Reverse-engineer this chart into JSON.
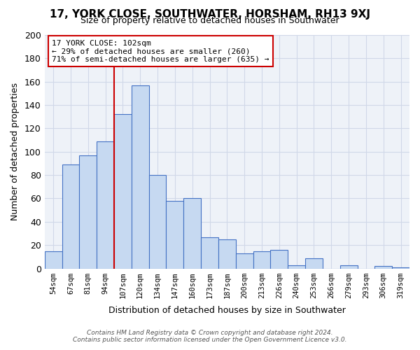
{
  "title": "17, YORK CLOSE, SOUTHWATER, HORSHAM, RH13 9XJ",
  "subtitle": "Size of property relative to detached houses in Southwater",
  "xlabel": "Distribution of detached houses by size in Southwater",
  "ylabel": "Number of detached properties",
  "bar_labels": [
    "54sqm",
    "67sqm",
    "81sqm",
    "94sqm",
    "107sqm",
    "120sqm",
    "134sqm",
    "147sqm",
    "160sqm",
    "173sqm",
    "187sqm",
    "200sqm",
    "213sqm",
    "226sqm",
    "240sqm",
    "253sqm",
    "266sqm",
    "279sqm",
    "293sqm",
    "306sqm",
    "319sqm"
  ],
  "bar_values": [
    15,
    89,
    97,
    109,
    132,
    157,
    80,
    58,
    60,
    27,
    25,
    13,
    15,
    16,
    3,
    9,
    0,
    3,
    0,
    2,
    1
  ],
  "bar_color": "#c6d9f1",
  "bar_edge_color": "#4472c4",
  "vline_x": 4,
  "vline_color": "#cc0000",
  "annotation_title": "17 YORK CLOSE: 102sqm",
  "annotation_line1": "← 29% of detached houses are smaller (260)",
  "annotation_line2": "71% of semi-detached houses are larger (635) →",
  "annotation_box_color": "#ffffff",
  "annotation_box_edge": "#cc0000",
  "ylim": [
    0,
    200
  ],
  "yticks": [
    0,
    20,
    40,
    60,
    80,
    100,
    120,
    140,
    160,
    180,
    200
  ],
  "grid_color": "#d0d8e8",
  "background_color": "#eef2f8",
  "footer_line1": "Contains HM Land Registry data © Crown copyright and database right 2024.",
  "footer_line2": "Contains public sector information licensed under the Open Government Licence v3.0."
}
